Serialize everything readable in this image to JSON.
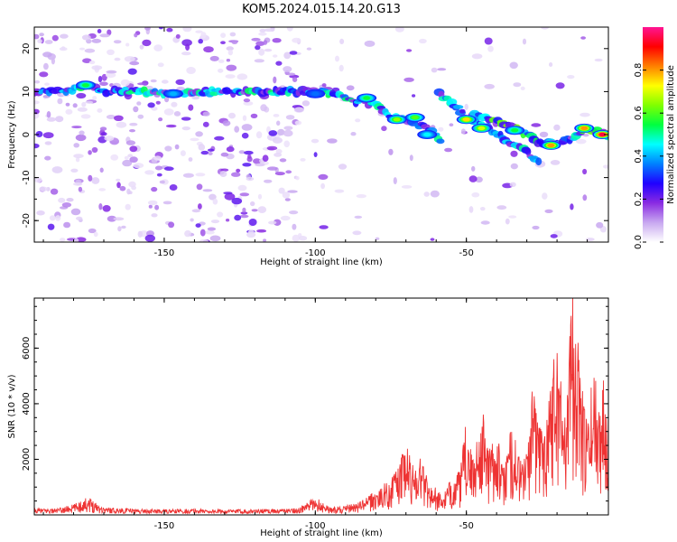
{
  "title": "KOM5.2024.015.14.20.G13",
  "chart_data": [
    {
      "type": "heatmap",
      "xlabel": "Height of straight line (km)",
      "ylabel": "Frequency (Hz)",
      "xlim": [
        -193,
        -3
      ],
      "ylim": [
        -25,
        25
      ],
      "xticks": [
        -150,
        -100,
        -50
      ],
      "yticks": [
        -20,
        -10,
        0,
        10,
        20
      ],
      "colorbar": {
        "label": "Normalized spectral amplitude",
        "range": [
          0.0,
          1.0
        ],
        "ticks": [
          0.0,
          0.2,
          0.4,
          0.6,
          0.8
        ],
        "colormap": [
          "#ffffff",
          "#c8a8f0",
          "#8a2be2",
          "#2000ff",
          "#0080ff",
          "#00ffff",
          "#00ff40",
          "#80ff00",
          "#ffff00",
          "#ff8000",
          "#ff0000",
          "#ff1493"
        ]
      },
      "ridges": [
        {
          "points": [
            [
              -193,
              10
            ],
            [
              -180,
              10.5
            ],
            [
              -175,
              11.5
            ],
            [
              -170,
              10
            ],
            [
              -160,
              10
            ],
            [
              -148,
              9.5
            ],
            [
              -135,
              10
            ],
            [
              -120,
              10
            ],
            [
              -105,
              10
            ],
            [
              -100,
              10
            ],
            [
              -95,
              9.5
            ],
            [
              -88,
              8
            ],
            [
              -80,
              7
            ],
            [
              -74,
              4
            ],
            [
              -68,
              3
            ],
            [
              -62,
              1
            ],
            [
              -58,
              -1.5
            ]
          ],
          "peak": 0.65
        },
        {
          "points": [
            [
              -59,
              9.5
            ],
            [
              -54,
              7
            ],
            [
              -50,
              4
            ],
            [
              -45,
              2
            ],
            [
              -40,
              0.5
            ],
            [
              -35,
              -2
            ],
            [
              -30,
              -4
            ],
            [
              -26,
              -6
            ]
          ],
          "peak": 0.6
        },
        {
          "points": [
            [
              -48,
              4.5
            ],
            [
              -42,
              3.5
            ],
            [
              -36,
              2
            ],
            [
              -30,
              0
            ],
            [
              -25,
              -2
            ],
            [
              -20,
              -2
            ],
            [
              -15,
              -1
            ],
            [
              -10,
              1
            ],
            [
              -5,
              0.5
            ],
            [
              -3,
              0
            ]
          ],
          "peak": 0.85
        }
      ],
      "hotspots": [
        {
          "x": -176,
          "y": 11.5,
          "amp": 0.55
        },
        {
          "x": -147,
          "y": 9.5,
          "amp": 0.4
        },
        {
          "x": -100,
          "y": 9.5,
          "amp": 0.35
        },
        {
          "x": -83,
          "y": 8.5,
          "amp": 0.55
        },
        {
          "x": -73,
          "y": 3.5,
          "amp": 0.65
        },
        {
          "x": -67,
          "y": 4,
          "amp": 0.6
        },
        {
          "x": -63,
          "y": 0,
          "amp": 0.45
        },
        {
          "x": -50,
          "y": 3.5,
          "amp": 0.75
        },
        {
          "x": -45,
          "y": 1.5,
          "amp": 0.7
        },
        {
          "x": -34,
          "y": 1,
          "amp": 0.55
        },
        {
          "x": -22,
          "y": -2.5,
          "amp": 0.8
        },
        {
          "x": -11,
          "y": 1.5,
          "amp": 0.8
        },
        {
          "x": -5,
          "y": 0,
          "amp": 0.95
        }
      ]
    },
    {
      "type": "line",
      "xlabel": "Height of straight line (km)",
      "ylabel": "SNR (10 * v/v)",
      "xlim": [
        -193,
        -3
      ],
      "ylim": [
        0,
        7800
      ],
      "xticks": [
        -150,
        -100,
        -50
      ],
      "yticks": [
        2000,
        4000,
        6000
      ],
      "series": [
        {
          "color": "#ee3333",
          "x": [
            -193,
            -185,
            -180,
            -175,
            -170,
            -160,
            -150,
            -140,
            -130,
            -120,
            -110,
            -105,
            -100,
            -97,
            -95,
            -90,
            -85,
            -80,
            -75,
            -72,
            -70,
            -68,
            -65,
            -62,
            -60,
            -58,
            -55,
            -52,
            -50,
            -48,
            -45,
            -42,
            -40,
            -38,
            -35,
            -32,
            -30,
            -28,
            -25,
            -23,
            -20,
            -18,
            -15,
            -12,
            -10,
            -8,
            -6,
            -3
          ],
          "values": [
            200,
            220,
            350,
            600,
            250,
            200,
            180,
            200,
            170,
            190,
            200,
            250,
            600,
            400,
            250,
            300,
            450,
            800,
            1200,
            1800,
            2400,
            1700,
            2000,
            1000,
            900,
            600,
            1200,
            1500,
            3200,
            1800,
            3600,
            2200,
            3000,
            1500,
            3000,
            1800,
            2200,
            4300,
            3000,
            4000,
            6500,
            3500,
            7800,
            4500,
            3000,
            5000,
            4200,
            5000
          ]
        }
      ]
    }
  ]
}
